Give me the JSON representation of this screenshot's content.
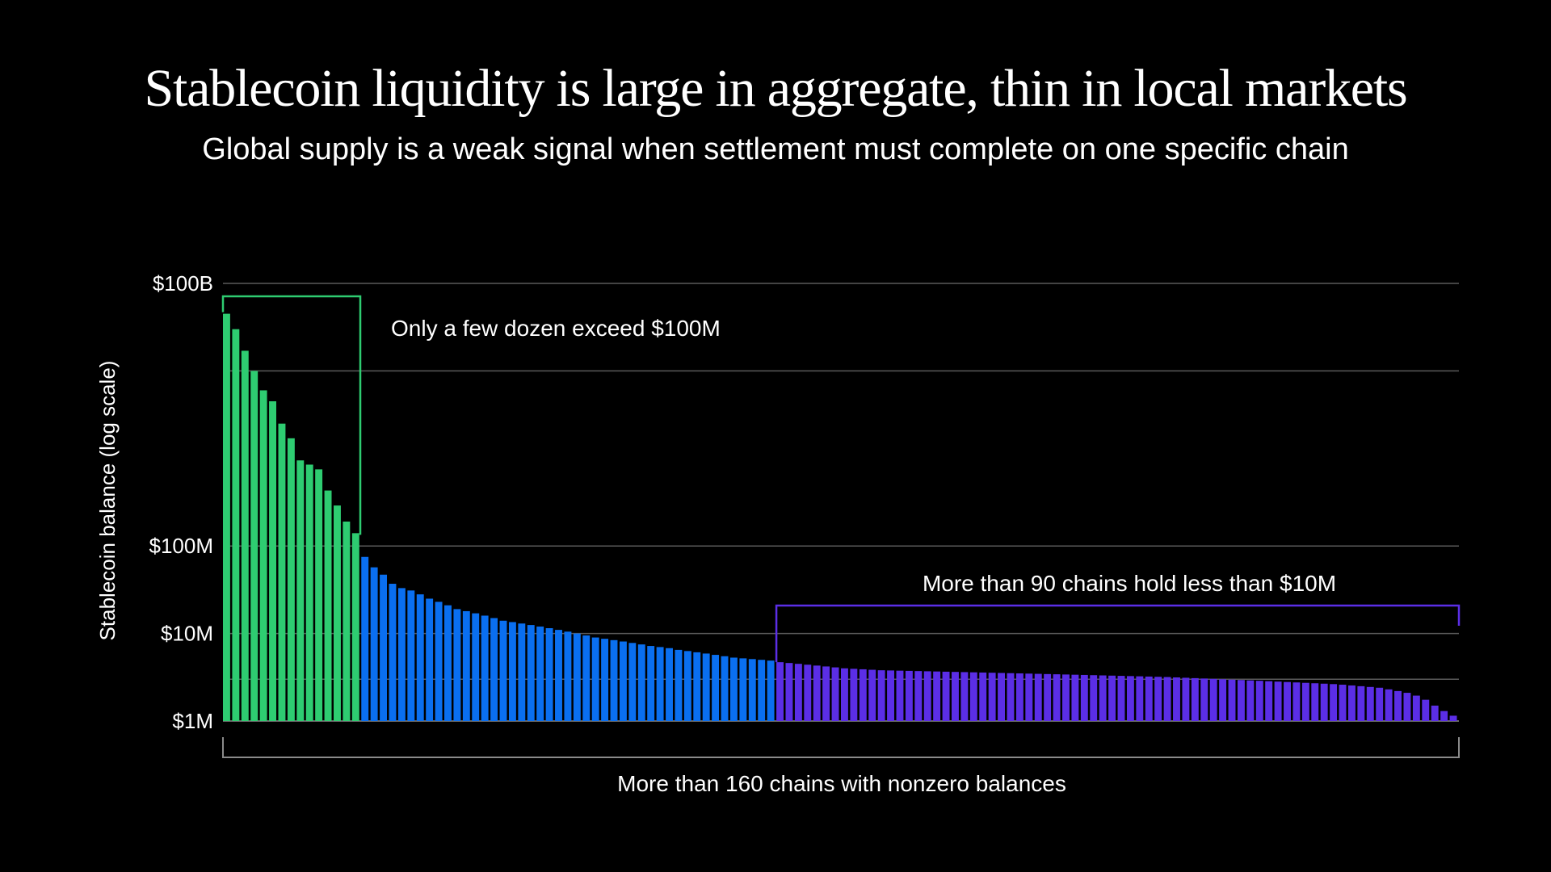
{
  "title": "Stablecoin liquidity is large in aggregate, thin in local markets",
  "subtitle": "Global supply is a weak signal when settlement must complete on one specific chain",
  "chart_data": {
    "type": "bar",
    "ylabel": "Stablecoin balance (log scale)",
    "xlabel": "More than 160 chains with nonzero balances",
    "y_scale": "log",
    "ylim": [
      1000000,
      100000000000
    ],
    "yticks": [
      {
        "value": 100000000000,
        "label": "$100B"
      },
      {
        "value": 100000000,
        "label": "$100M"
      },
      {
        "value": 10000000,
        "label": "$10M"
      },
      {
        "value": 1000000,
        "label": "$1M"
      }
    ],
    "gridlines": [
      100000000000,
      10000000000,
      100000000,
      10000000,
      3000000
    ],
    "colors": {
      "green": "#2ecc71",
      "blue": "#0a6ff0",
      "purple": "#5b2ee6",
      "grid": "#5a5a5a",
      "axis_label": "#ffffff"
    },
    "groups": [
      {
        "color": "#2ecc71",
        "values": [
          45000000000,
          30000000000,
          17000000000,
          10000000000,
          6000000000,
          4500000000,
          2500000000,
          1700000000,
          950000000,
          850000000,
          750000000,
          430000000,
          290000000,
          190000000,
          140000000
        ]
      },
      {
        "color": "#0a6ff0",
        "values": [
          75000000,
          57000000,
          47000000,
          37000000,
          33000000,
          31000000,
          28000000,
          25000000,
          23000000,
          21000000,
          19000000,
          18000000,
          17000000,
          16000000,
          15000000,
          14000000,
          13500000,
          13000000,
          12500000,
          12000000,
          11500000,
          11000000,
          10500000,
          10000000,
          9500000,
          9000000,
          8700000,
          8400000,
          8100000,
          7800000,
          7500000,
          7200000,
          7000000,
          6800000,
          6500000,
          6300000,
          6100000,
          5900000,
          5700000,
          5500000,
          5300000,
          5200000,
          5100000,
          5000000,
          4900000
        ]
      },
      {
        "color": "#5b2ee6",
        "values": [
          4700000,
          4600000,
          4500000,
          4400000,
          4300000,
          4200000,
          4100000,
          4000000,
          3950000,
          3900000,
          3850000,
          3800000,
          3780000,
          3760000,
          3740000,
          3720000,
          3700000,
          3680000,
          3660000,
          3640000,
          3620000,
          3600000,
          3580000,
          3560000,
          3540000,
          3520000,
          3500000,
          3480000,
          3460000,
          3440000,
          3420000,
          3400000,
          3380000,
          3360000,
          3340000,
          3320000,
          3300000,
          3280000,
          3260000,
          3240000,
          3220000,
          3200000,
          3180000,
          3150000,
          3120000,
          3090000,
          3060000,
          3030000,
          3000000,
          2970000,
          2940000,
          2910000,
          2880000,
          2850000,
          2820000,
          2790000,
          2760000,
          2730000,
          2700000,
          2670000,
          2640000,
          2600000,
          2550000,
          2500000,
          2450000,
          2400000,
          2300000,
          2200000,
          2100000,
          1950000,
          1750000,
          1500000,
          1300000,
          1150000
        ]
      }
    ],
    "annotations": [
      {
        "text": "Only a few dozen exceed $100M",
        "color": "#2ecc71",
        "group": 0
      },
      {
        "text": "More than 90 chains hold less than $10M",
        "color": "#5b2ee6",
        "group": 2
      }
    ]
  }
}
